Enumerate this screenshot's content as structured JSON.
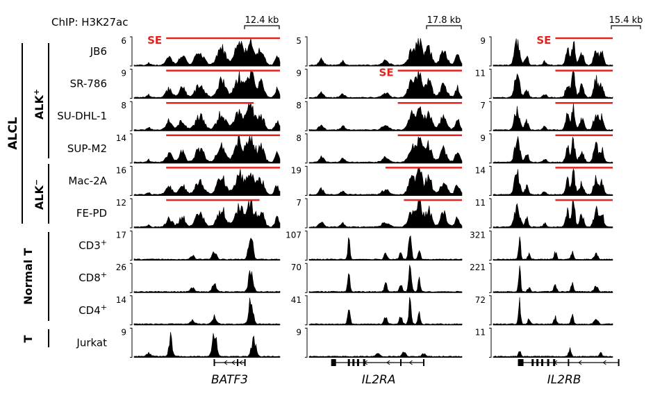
{
  "figure": {
    "chip_label": "ChIP: H3K27ac",
    "se_label": "SE",
    "colors": {
      "track": "#000000",
      "super_enhancer": "#e2221e",
      "text": "#000000",
      "se_text": "#e2221e"
    }
  },
  "groups": {
    "alcl": "ALCL",
    "alk_pos": "ALK",
    "alk_pos_sup": "+",
    "alk_neg": "ALK",
    "alk_neg_sup": "−",
    "normal_t": "Normal T",
    "t": "T"
  },
  "rows": [
    {
      "name": "JB6",
      "sup": ""
    },
    {
      "name": "SR-786",
      "sup": ""
    },
    {
      "name": "SU-DHL-1",
      "sup": ""
    },
    {
      "name": "SUP-M2",
      "sup": ""
    },
    {
      "name": "Mac-2A",
      "sup": ""
    },
    {
      "name": "FE-PD",
      "sup": ""
    },
    {
      "name": "CD3",
      "sup": "+"
    },
    {
      "name": "CD8",
      "sup": "+"
    },
    {
      "name": "CD4",
      "sup": "+"
    },
    {
      "name": "Jurkat",
      "sup": ""
    }
  ],
  "loci": [
    {
      "gene": "BATF3",
      "scale_bar": "12.4 kb",
      "scales": [
        "6",
        "9",
        "8",
        "14",
        "16",
        "12",
        "17",
        "26",
        "14",
        "9"
      ],
      "super_enhancers": [
        {
          "row": 0,
          "start": 0.22,
          "end": 1.0,
          "label": true
        },
        {
          "row": 1,
          "start": 0.22,
          "end": 1.0,
          "label": false
        },
        {
          "row": 2,
          "start": 0.22,
          "end": 0.82,
          "label": false
        },
        {
          "row": 3,
          "start": 0.22,
          "end": 1.0,
          "label": false
        },
        {
          "row": 4,
          "start": 0.22,
          "end": 1.0,
          "label": false
        },
        {
          "row": 5,
          "start": 0.22,
          "end": 0.86,
          "label": false
        }
      ],
      "peaks": {
        "alcl": [
          [
            0.1,
            0.1,
            0.015
          ],
          [
            0.24,
            0.35,
            0.03
          ],
          [
            0.33,
            0.4,
            0.03
          ],
          [
            0.45,
            0.55,
            0.04
          ],
          [
            0.6,
            0.7,
            0.04
          ],
          [
            0.72,
            0.85,
            0.04
          ],
          [
            0.8,
            1.0,
            0.035
          ],
          [
            0.87,
            0.6,
            0.03
          ],
          [
            0.98,
            0.35,
            0.02
          ]
        ],
        "normal": [
          [
            0.8,
            0.95,
            0.02
          ],
          [
            0.55,
            0.3,
            0.02
          ],
          [
            0.4,
            0.15,
            0.02
          ]
        ],
        "jurkat": [
          [
            0.1,
            0.15,
            0.02
          ],
          [
            0.25,
            0.85,
            0.015
          ],
          [
            0.55,
            1.0,
            0.02
          ],
          [
            0.82,
            0.7,
            0.02
          ]
        ]
      }
    },
    {
      "gene": "IL2RA",
      "scale_bar": "17.8 kb",
      "scales": [
        "5",
        "9",
        "8",
        "8",
        "19",
        "7",
        "107",
        "70",
        "41",
        "9"
      ],
      "super_enhancers": [
        {
          "row": 1,
          "start": 0.58,
          "end": 1.0,
          "label": true
        },
        {
          "row": 2,
          "start": 0.58,
          "end": 1.0,
          "label": false
        },
        {
          "row": 3,
          "start": 0.58,
          "end": 1.0,
          "label": false
        },
        {
          "row": 4,
          "start": 0.5,
          "end": 1.0,
          "label": false
        },
        {
          "row": 5,
          "start": 0.62,
          "end": 1.0,
          "label": false
        }
      ],
      "peaks": {
        "alcl": [
          [
            0.08,
            0.25,
            0.02
          ],
          [
            0.22,
            0.15,
            0.02
          ],
          [
            0.5,
            0.2,
            0.03
          ],
          [
            0.67,
            0.6,
            0.03
          ],
          [
            0.72,
            1.0,
            0.025
          ],
          [
            0.78,
            0.7,
            0.03
          ],
          [
            0.88,
            0.55,
            0.03
          ],
          [
            0.97,
            0.4,
            0.02
          ]
        ],
        "normal": [
          [
            0.26,
            0.75,
            0.01
          ],
          [
            0.5,
            0.35,
            0.012
          ],
          [
            0.66,
            1.0,
            0.012
          ],
          [
            0.72,
            0.5,
            0.01
          ],
          [
            0.6,
            0.3,
            0.012
          ]
        ],
        "jurkat": [
          [
            0.45,
            0.15,
            0.015
          ],
          [
            0.62,
            0.2,
            0.015
          ],
          [
            0.75,
            0.12,
            0.015
          ]
        ]
      }
    },
    {
      "gene": "IL2RB",
      "scale_bar": "15.4 kb",
      "scales": [
        "9",
        "11",
        "7",
        "9",
        "14",
        "11",
        "321",
        "221",
        "72",
        "11"
      ],
      "super_enhancers": [
        {
          "row": 0,
          "start": 0.52,
          "end": 1.0,
          "label": true
        },
        {
          "row": 1,
          "start": 0.52,
          "end": 1.0,
          "label": false
        },
        {
          "row": 2,
          "start": 0.52,
          "end": 1.0,
          "label": false
        },
        {
          "row": 3,
          "start": 0.52,
          "end": 1.0,
          "label": false
        },
        {
          "row": 4,
          "start": 0.52,
          "end": 1.0,
          "label": false
        },
        {
          "row": 5,
          "start": 0.52,
          "end": 1.0,
          "label": false
        }
      ],
      "peaks": {
        "alcl": [
          [
            0.2,
            0.9,
            0.03
          ],
          [
            0.28,
            0.35,
            0.02
          ],
          [
            0.43,
            0.15,
            0.02
          ],
          [
            0.62,
            0.65,
            0.02
          ],
          [
            0.67,
            1.0,
            0.02
          ],
          [
            0.74,
            0.45,
            0.025
          ],
          [
            0.86,
            0.75,
            0.025
          ],
          [
            0.91,
            0.55,
            0.02
          ]
        ],
        "normal": [
          [
            0.22,
            1.0,
            0.012
          ],
          [
            0.3,
            0.2,
            0.015
          ],
          [
            0.52,
            0.3,
            0.015
          ],
          [
            0.66,
            0.35,
            0.015
          ],
          [
            0.86,
            0.25,
            0.02
          ]
        ],
        "jurkat": [
          [
            0.22,
            0.25,
            0.012
          ],
          [
            0.64,
            0.3,
            0.015
          ],
          [
            0.9,
            0.15,
            0.015
          ]
        ]
      }
    }
  ]
}
